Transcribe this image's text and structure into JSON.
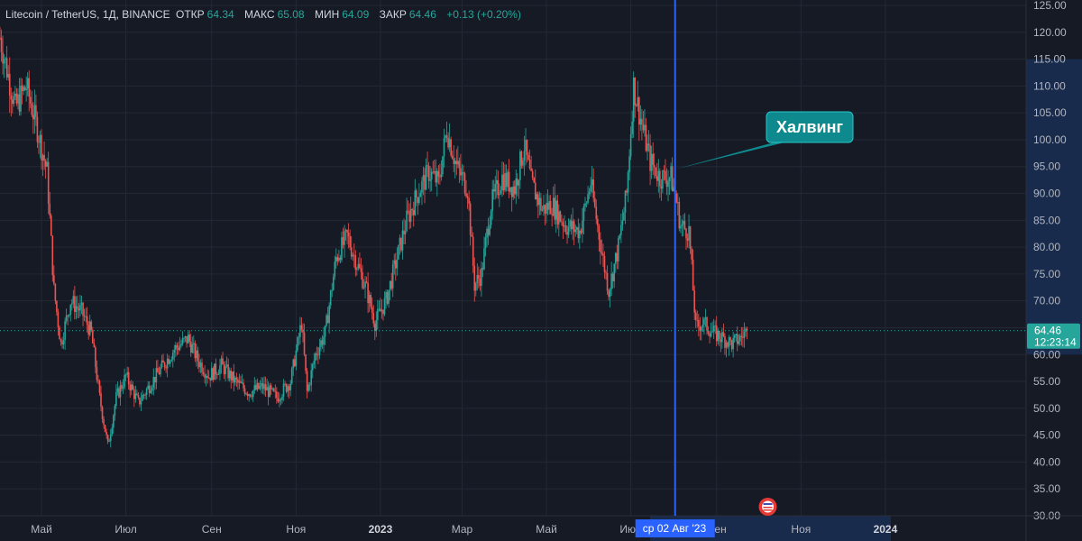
{
  "header": {
    "symbol": "Litecoin / TetherUS, 1Д, BINANCE",
    "open_label": "ОТКР",
    "open_value": "64.34",
    "high_label": "МАКС",
    "high_value": "65.08",
    "low_label": "МИН",
    "low_value": "64.09",
    "close_label": "ЗАКР",
    "close_value": "64.46",
    "change": "+0.13 (+0.20%)"
  },
  "price_tag": {
    "price": "64.46",
    "countdown": "12:23:14"
  },
  "crosshair_date": "ср 02 Авг '23",
  "annotation": {
    "text": "Халвинг"
  },
  "colors": {
    "up": "#26a69a",
    "down": "#ef5350",
    "background": "#161a25",
    "marker": "#2962ff",
    "callout": "#0e8a8f"
  },
  "chart_data": {
    "type": "candlestick",
    "ylim": [
      30,
      125
    ],
    "yticks": [
      "125.00",
      "120.00",
      "115.00",
      "110.00",
      "105.00",
      "100.00",
      "95.00",
      "90.00",
      "85.00",
      "80.00",
      "75.00",
      "70.00",
      "65.00",
      "60.00",
      "55.00",
      "50.00",
      "45.00",
      "40.00",
      "35.00",
      "30.00"
    ],
    "x_ticks": [
      {
        "label": "Май",
        "bold": false
      },
      {
        "label": "Июл",
        "bold": false
      },
      {
        "label": "Сен",
        "bold": false
      },
      {
        "label": "Ноя",
        "bold": false
      },
      {
        "label": "2023",
        "bold": true
      },
      {
        "label": "Мар",
        "bold": false
      },
      {
        "label": "Май",
        "bold": false
      },
      {
        "label": "Июл",
        "bold": false
      },
      {
        "label": "Сен",
        "bold": false
      },
      {
        "label": "Ноя",
        "bold": false
      },
      {
        "label": "2024",
        "bold": true
      }
    ],
    "x_range": [
      "2022-04-01",
      "2024-03-31"
    ],
    "last_price": 64.46,
    "event_date": "2023-08-02",
    "event_label": "Халвинг",
    "path": [
      [
        "2022-04-01",
        119
      ],
      [
        "2022-04-12",
        106
      ],
      [
        "2022-04-20",
        110
      ],
      [
        "2022-04-28",
        102
      ],
      [
        "2022-05-05",
        94
      ],
      [
        "2022-05-10",
        72
      ],
      [
        "2022-05-15",
        62
      ],
      [
        "2022-05-22",
        70
      ],
      [
        "2022-05-30",
        68
      ],
      [
        "2022-06-06",
        64
      ],
      [
        "2022-06-12",
        52
      ],
      [
        "2022-06-18",
        43
      ],
      [
        "2022-06-24",
        52
      ],
      [
        "2022-07-01",
        56
      ],
      [
        "2022-07-10",
        51
      ],
      [
        "2022-07-20",
        55
      ],
      [
        "2022-07-28",
        58
      ],
      [
        "2022-08-05",
        61
      ],
      [
        "2022-08-15",
        63
      ],
      [
        "2022-08-22",
        59
      ],
      [
        "2022-08-30",
        56
      ],
      [
        "2022-09-08",
        58
      ],
      [
        "2022-09-18",
        55
      ],
      [
        "2022-09-28",
        53
      ],
      [
        "2022-10-08",
        54
      ],
      [
        "2022-10-18",
        52
      ],
      [
        "2022-10-28",
        55
      ],
      [
        "2022-11-05",
        66
      ],
      [
        "2022-11-09",
        53
      ],
      [
        "2022-11-15",
        60
      ],
      [
        "2022-11-22",
        64
      ],
      [
        "2022-11-30",
        78
      ],
      [
        "2022-12-08",
        82
      ],
      [
        "2022-12-15",
        77
      ],
      [
        "2022-12-22",
        72
      ],
      [
        "2022-12-28",
        66
      ],
      [
        "2023-01-05",
        70
      ],
      [
        "2023-01-12",
        77
      ],
      [
        "2023-01-20",
        85
      ],
      [
        "2023-01-28",
        90
      ],
      [
        "2023-02-05",
        94
      ],
      [
        "2023-02-12",
        92
      ],
      [
        "2023-02-18",
        102
      ],
      [
        "2023-02-25",
        95
      ],
      [
        "2023-03-05",
        91
      ],
      [
        "2023-03-10",
        73
      ],
      [
        "2023-03-15",
        75
      ],
      [
        "2023-03-22",
        88
      ],
      [
        "2023-03-30",
        93
      ],
      [
        "2023-04-08",
        91
      ],
      [
        "2023-04-15",
        99
      ],
      [
        "2023-04-20",
        92
      ],
      [
        "2023-04-28",
        87
      ],
      [
        "2023-05-05",
        88
      ],
      [
        "2023-05-15",
        84
      ],
      [
        "2023-05-25",
        83
      ],
      [
        "2023-06-02",
        92
      ],
      [
        "2023-06-10",
        79
      ],
      [
        "2023-06-15",
        72
      ],
      [
        "2023-06-22",
        80
      ],
      [
        "2023-06-28",
        90
      ],
      [
        "2023-07-03",
        110
      ],
      [
        "2023-07-08",
        104
      ],
      [
        "2023-07-15",
        96
      ],
      [
        "2023-07-22",
        93
      ],
      [
        "2023-07-30",
        93
      ],
      [
        "2023-08-02",
        90
      ],
      [
        "2023-08-06",
        84
      ],
      [
        "2023-08-12",
        83
      ],
      [
        "2023-08-17",
        65
      ],
      [
        "2023-08-22",
        66
      ],
      [
        "2023-08-30",
        64
      ],
      [
        "2023-09-06",
        63
      ],
      [
        "2023-09-12",
        62
      ],
      [
        "2023-09-18",
        63
      ],
      [
        "2023-09-23",
        64.46
      ]
    ]
  }
}
